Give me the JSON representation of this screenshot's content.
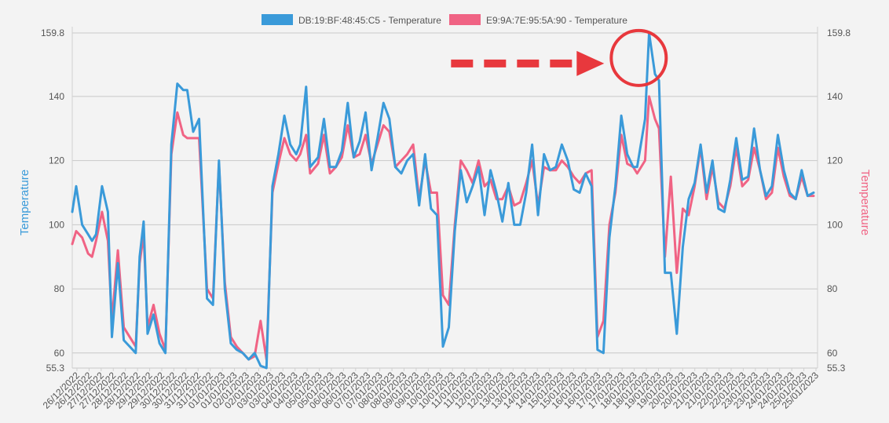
{
  "chart_data": {
    "type": "line",
    "y_axis_left_label": "Temperature",
    "y_axis_right_label": "Temperature",
    "ylim": [
      55.3,
      159.8
    ],
    "y_ticks": [
      "55.3",
      "60",
      "80",
      "100",
      "120",
      "140",
      "159.8"
    ],
    "x_ticks": [
      "26/12/2022",
      "26/12/2022",
      "27/12/2022",
      "27/12/2022",
      "28/12/2022",
      "28/12/2022",
      "29/12/2022",
      "29/12/2022",
      "30/12/2022",
      "30/12/2022",
      "31/12/2022",
      "31/12/2022",
      "01/01/2023",
      "01/01/2023",
      "02/01/2023",
      "02/01/2023",
      "03/01/2023",
      "03/01/2023",
      "04/01/2023",
      "04/01/2023",
      "05/01/2023",
      "05/01/2023",
      "06/01/2023",
      "06/01/2023",
      "07/01/2023",
      "07/01/2023",
      "08/01/2023",
      "08/01/2023",
      "09/01/2023",
      "09/01/2023",
      "10/01/2023",
      "10/01/2023",
      "11/01/2023",
      "11/01/2023",
      "12/01/2023",
      "12/01/2023",
      "13/01/2023",
      "13/01/2023",
      "14/01/2023",
      "14/01/2023",
      "15/01/2023",
      "15/01/2023",
      "16/01/2023",
      "16/01/2023",
      "17/01/2023",
      "17/01/2023",
      "18/01/2023",
      "18/01/2023",
      "19/01/2023",
      "19/01/2023",
      "20/01/2023",
      "20/01/2023",
      "21/01/2023",
      "21/01/2023",
      "22/01/2023",
      "22/01/2023",
      "23/01/2023",
      "23/01/2023",
      "24/01/2023",
      "24/01/2023",
      "25/01/2023",
      "25/01/2023"
    ],
    "grid": true,
    "legend_placement": "top-center",
    "series": [
      {
        "name": "DB:19:BF:48:45:C5 - Temperature",
        "color": "#3a9ad9",
        "values": [
          104,
          112,
          100,
          97,
          95,
          97,
          112,
          104,
          65,
          88,
          64,
          62,
          60,
          90,
          101,
          66,
          72,
          63,
          60,
          125,
          144,
          142,
          142,
          129,
          133,
          77,
          75,
          120,
          80,
          63,
          61,
          60,
          58,
          60,
          56,
          55,
          112,
          122,
          134,
          125,
          122,
          125,
          143,
          118,
          121,
          133,
          118,
          118,
          123,
          138,
          121,
          126,
          135,
          117,
          127,
          138,
          133,
          118,
          116,
          120,
          122,
          106,
          122,
          105,
          103,
          62,
          68,
          98,
          117,
          107,
          112,
          118,
          103,
          117,
          110,
          101,
          113,
          100,
          100,
          110,
          125,
          103,
          122,
          117,
          118,
          125,
          120,
          111,
          110,
          116,
          112,
          61,
          60,
          96,
          112,
          134,
          122,
          118,
          118,
          133,
          160,
          147,
          145,
          85,
          85,
          66,
          93,
          108,
          113,
          125,
          110,
          120,
          105,
          104,
          114,
          127,
          114,
          115,
          130,
          117,
          109,
          112,
          128,
          117,
          110,
          108,
          117,
          109,
          110
        ],
        "x": [
          0,
          0.2,
          0.5,
          0.8,
          1.0,
          1.2,
          1.5,
          1.8,
          2.0,
          2.3,
          2.6,
          2.9,
          3.2,
          3.4,
          3.6,
          3.8,
          4.1,
          4.4,
          4.7,
          5.0,
          5.3,
          5.6,
          5.8,
          6.1,
          6.4,
          6.8,
          7.1,
          7.4,
          7.7,
          8.0,
          8.3,
          8.6,
          8.9,
          9.2,
          9.5,
          9.8,
          10.1,
          10.4,
          10.7,
          11.0,
          11.3,
          11.5,
          11.8,
          12.0,
          12.4,
          12.7,
          13.0,
          13.3,
          13.6,
          13.9,
          14.2,
          14.5,
          14.8,
          15.1,
          15.4,
          15.7,
          16.0,
          16.3,
          16.6,
          16.9,
          17.2,
          17.5,
          17.8,
          18.1,
          18.4,
          18.7,
          19.0,
          19.3,
          19.6,
          19.9,
          20.2,
          20.5,
          20.8,
          21.1,
          21.4,
          21.7,
          22.0,
          22.3,
          22.6,
          22.9,
          23.2,
          23.5,
          23.8,
          24.1,
          24.4,
          24.7,
          25.0,
          25.3,
          25.6,
          25.9,
          26.2,
          26.5,
          26.8,
          27.1,
          27.4,
          27.7,
          28.0,
          28.3,
          28.5,
          28.9,
          29.1,
          29.4,
          29.6,
          29.9,
          30.2,
          30.5,
          30.8,
          31.1,
          31.4,
          31.7,
          32.0,
          32.3,
          32.6,
          32.9,
          33.2,
          33.5,
          33.8,
          34.1,
          34.4,
          34.7,
          35.0,
          35.3,
          35.6,
          35.9,
          36.2,
          36.5,
          36.8,
          37.1,
          37.4
        ]
      },
      {
        "name": "E9:9A:7E:95:5A:90 - Temperature",
        "color": "#f06384",
        "values": [
          94,
          98,
          96,
          91,
          90,
          95,
          104,
          95,
          70,
          92,
          68,
          65,
          62,
          88,
          97,
          68,
          75,
          66,
          61,
          122,
          135,
          128,
          127,
          127,
          127,
          80,
          77,
          119,
          82,
          65,
          62,
          60,
          58,
          59,
          70,
          58,
          110,
          119,
          127,
          122,
          120,
          122,
          128,
          116,
          119,
          128,
          116,
          118,
          121,
          131,
          121,
          122,
          128,
          119,
          125,
          131,
          129,
          118,
          120,
          122,
          125,
          108,
          120,
          110,
          110,
          78,
          75,
          100,
          120,
          117,
          113,
          120,
          112,
          114,
          108,
          108,
          112,
          106,
          107,
          113,
          120,
          106,
          118,
          117,
          117,
          120,
          118,
          115,
          113,
          116,
          117,
          65,
          70,
          100,
          110,
          128,
          119,
          118,
          116,
          120,
          140,
          133,
          130,
          90,
          115,
          85,
          105,
          103,
          112,
          124,
          108,
          118,
          107,
          105,
          112,
          124,
          112,
          114,
          124,
          117,
          108,
          110,
          124,
          115,
          109,
          108,
          115,
          109,
          109
        ],
        "x": [
          0,
          0.2,
          0.5,
          0.8,
          1.0,
          1.2,
          1.5,
          1.8,
          2.0,
          2.3,
          2.6,
          2.9,
          3.2,
          3.4,
          3.6,
          3.8,
          4.1,
          4.4,
          4.7,
          5.0,
          5.3,
          5.6,
          5.8,
          6.1,
          6.4,
          6.8,
          7.1,
          7.4,
          7.7,
          8.0,
          8.3,
          8.6,
          8.9,
          9.2,
          9.5,
          9.8,
          10.1,
          10.4,
          10.7,
          11.0,
          11.3,
          11.5,
          11.8,
          12.0,
          12.4,
          12.7,
          13.0,
          13.3,
          13.6,
          13.9,
          14.2,
          14.5,
          14.8,
          15.1,
          15.4,
          15.7,
          16.0,
          16.3,
          16.6,
          16.9,
          17.2,
          17.5,
          17.8,
          18.1,
          18.4,
          18.7,
          19.0,
          19.3,
          19.6,
          19.9,
          20.2,
          20.5,
          20.8,
          21.1,
          21.4,
          21.7,
          22.0,
          22.3,
          22.6,
          22.9,
          23.2,
          23.5,
          23.8,
          24.1,
          24.4,
          24.7,
          25.0,
          25.3,
          25.6,
          25.9,
          26.2,
          26.5,
          26.8,
          27.1,
          27.4,
          27.7,
          28.0,
          28.3,
          28.5,
          28.9,
          29.1,
          29.4,
          29.6,
          29.9,
          30.2,
          30.5,
          30.8,
          31.1,
          31.4,
          31.7,
          32.0,
          32.3,
          32.6,
          32.9,
          33.2,
          33.5,
          33.8,
          34.1,
          34.4,
          34.7,
          35.0,
          35.3,
          35.6,
          35.9,
          36.2,
          36.5,
          36.8,
          37.1,
          37.4
        ]
      }
    ],
    "x_range": [
      0,
      37.6
    ],
    "annotation": {
      "type": "dashed-arrow-and-circle",
      "color": "#e8383d",
      "target_x": 28.5,
      "target_y": 152
    }
  }
}
